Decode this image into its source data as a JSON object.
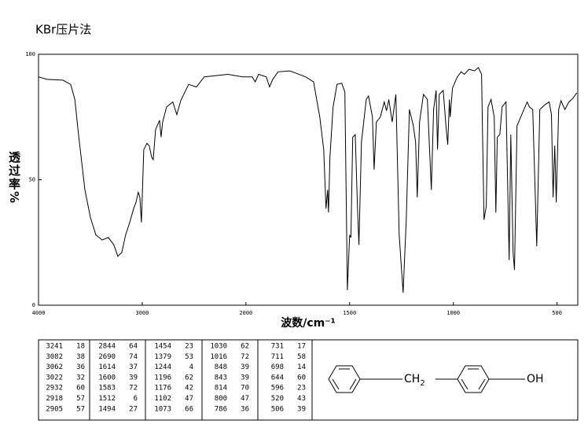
{
  "chart_data": {
    "type": "line",
    "title": "KBr压片法",
    "x_label": "波数/cm⁻¹",
    "y_label": "透过率%",
    "x": [
      4000,
      3917,
      3765,
      3690,
      3650,
      3614,
      3553,
      3500,
      3447,
      3386,
      3326,
      3273,
      3235,
      3197,
      3160,
      3121,
      3083,
      3060,
      3038,
      3023,
      3008,
      2985,
      2955,
      2932,
      2909,
      2894,
      2871,
      2833,
      2818,
      2803,
      2765,
      2705,
      2667,
      2629,
      2553,
      2477,
      2402,
      2174,
      2030,
      1970,
      1955,
      1939,
      1902,
      1886,
      1871,
      1845,
      1788,
      1712,
      1674,
      1644,
      1625,
      1614,
      1606,
      1602,
      1595,
      1580,
      1561,
      1538,
      1523,
      1511,
      1500,
      1494,
      1485,
      1473,
      1462,
      1455,
      1443,
      1420,
      1409,
      1390,
      1382,
      1371,
      1352,
      1333,
      1322,
      1311,
      1295,
      1277,
      1261,
      1242,
      1227,
      1212,
      1193,
      1182,
      1174,
      1163,
      1144,
      1125,
      1106,
      1095,
      1083,
      1076,
      1068,
      1049,
      1034,
      1027,
      1019,
      1015,
      1004,
      981,
      962,
      947,
      924,
      898,
      879,
      864,
      852,
      841,
      833,
      818,
      803,
      795,
      788,
      776,
      765,
      746,
      731,
      723,
      712,
      705,
      693,
      670,
      644,
      633,
      617,
      598,
      583,
      557,
      538,
      527,
      519,
      511,
      504,
      492,
      481,
      462,
      443,
      424,
      405
    ],
    "values": [
      91,
      90,
      89.7,
      88,
      82,
      68,
      46,
      35,
      28,
      26,
      27,
      24,
      19.5,
      21,
      28,
      33,
      38.5,
      41,
      45,
      43,
      33,
      62,
      64.5,
      63.5,
      59,
      58,
      70,
      73.7,
      67,
      73,
      79,
      81,
      76,
      81.5,
      88,
      87,
      91,
      92,
      91,
      91,
      89,
      92,
      91,
      87,
      90,
      93,
      93.4,
      91,
      89,
      75,
      62,
      38.5,
      46,
      37,
      59,
      79,
      88,
      88.5,
      85,
      6,
      28,
      27,
      67,
      68,
      38.5,
      24,
      65,
      82,
      83.4,
      75,
      54,
      73,
      75,
      81,
      77.5,
      82,
      73,
      84,
      28,
      5,
      34,
      78,
      71.5,
      65,
      43,
      73,
      84,
      82,
      46,
      78,
      85.6,
      62,
      84,
      85.6,
      70,
      64,
      82,
      75,
      86.5,
      91,
      93,
      92,
      94,
      93.4,
      94.7,
      92,
      34,
      39.5,
      79,
      82,
      75,
      37,
      67,
      68,
      79,
      81,
      18,
      68,
      21,
      14,
      71.5,
      76,
      81,
      79,
      78,
      23.5,
      78,
      80,
      81,
      76,
      43,
      63.6,
      41,
      78,
      81.5,
      78,
      81,
      82.4,
      84.6
    ],
    "color": "#000000",
    "xlim": [
      4000,
      400
    ],
    "xticks": [
      4000,
      3000,
      2000,
      1500,
      1000,
      500
    ],
    "ylim": [
      0,
      100
    ],
    "yticks": [
      0,
      50,
      100
    ],
    "grid": false
  },
  "peak_table": {
    "columns": [
      [
        [
          3241,
          18
        ],
        [
          3082,
          38
        ],
        [
          3062,
          36
        ],
        [
          3022,
          32
        ],
        [
          2932,
          60
        ],
        [
          2918,
          57
        ],
        [
          2905,
          57
        ]
      ],
      [
        [
          2844,
          64
        ],
        [
          2690,
          74
        ],
        [
          1614,
          37
        ],
        [
          1600,
          39
        ],
        [
          1583,
          72
        ],
        [
          1512,
          6
        ],
        [
          1494,
          27
        ]
      ],
      [
        [
          1454,
          23
        ],
        [
          1379,
          53
        ],
        [
          1244,
          4
        ],
        [
          1196,
          62
        ],
        [
          1176,
          42
        ],
        [
          1102,
          47
        ],
        [
          1073,
          66
        ]
      ],
      [
        [
          1030,
          62
        ],
        [
          1016,
          72
        ],
        [
          848,
          39
        ],
        [
          843,
          39
        ],
        [
          814,
          70
        ],
        [
          800,
          47
        ],
        [
          786,
          36
        ]
      ],
      [
        [
          731,
          17
        ],
        [
          711,
          58
        ],
        [
          698,
          14
        ],
        [
          644,
          60
        ],
        [
          596,
          23
        ],
        [
          520,
          43
        ],
        [
          506,
          39
        ]
      ]
    ]
  },
  "structure": {
    "ch": "CH",
    "sub": "2",
    "oh": "OH"
  }
}
